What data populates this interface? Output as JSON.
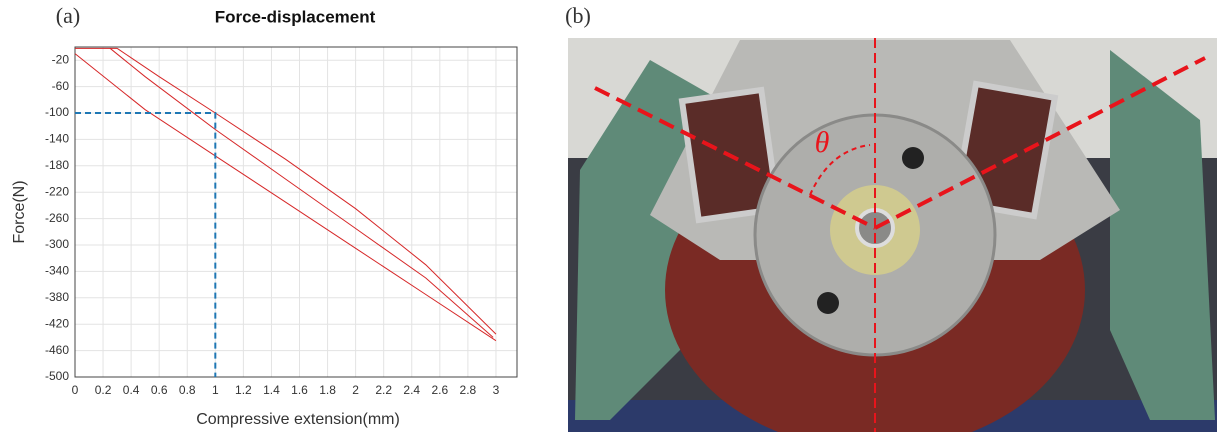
{
  "panel_labels": [
    "(a)",
    "(b)"
  ],
  "chart_data": {
    "type": "line",
    "title": "Force-displacement",
    "xlabel": "Compressive extension(mm)",
    "ylabel": "Force(N)",
    "xlim": [
      0,
      3.15
    ],
    "ylim": [
      -500,
      0
    ],
    "xticks": [
      0,
      0.2,
      0.4,
      0.6,
      0.8,
      1,
      1.2,
      1.4,
      1.6,
      1.8,
      2,
      2.2,
      2.4,
      2.6,
      2.8,
      3
    ],
    "yticks": [
      -20,
      -60,
      -100,
      -140,
      -180,
      -220,
      -260,
      -300,
      -340,
      -380,
      -420,
      -460,
      -500
    ],
    "grid": true,
    "series": [
      {
        "color": "#d62728",
        "x": [
          0,
          0.3
        ],
        "values": [
          -2,
          -2
        ]
      },
      {
        "color": "#d62728",
        "x": [
          0,
          0.5,
          1,
          1.5,
          2,
          2.5,
          3
        ],
        "values": [
          -10,
          -95,
          -165,
          -235,
          -305,
          -375,
          -445
        ]
      },
      {
        "color": "#d62728",
        "x": [
          0.25,
          0.5,
          1,
          1.5,
          2,
          2.5,
          2.98
        ],
        "values": [
          -2,
          -45,
          -125,
          -200,
          -275,
          -350,
          -440
        ]
      },
      {
        "color": "#d62728",
        "x": [
          0.3,
          0.6,
          1,
          1.5,
          2,
          2.5,
          3
        ],
        "values": [
          -2,
          -45,
          -100,
          -170,
          -245,
          -330,
          -435
        ]
      }
    ],
    "reference": {
      "x": 1,
      "y": -100,
      "color": "#1f77b4"
    }
  },
  "photo": {
    "angle_label": "θ"
  }
}
